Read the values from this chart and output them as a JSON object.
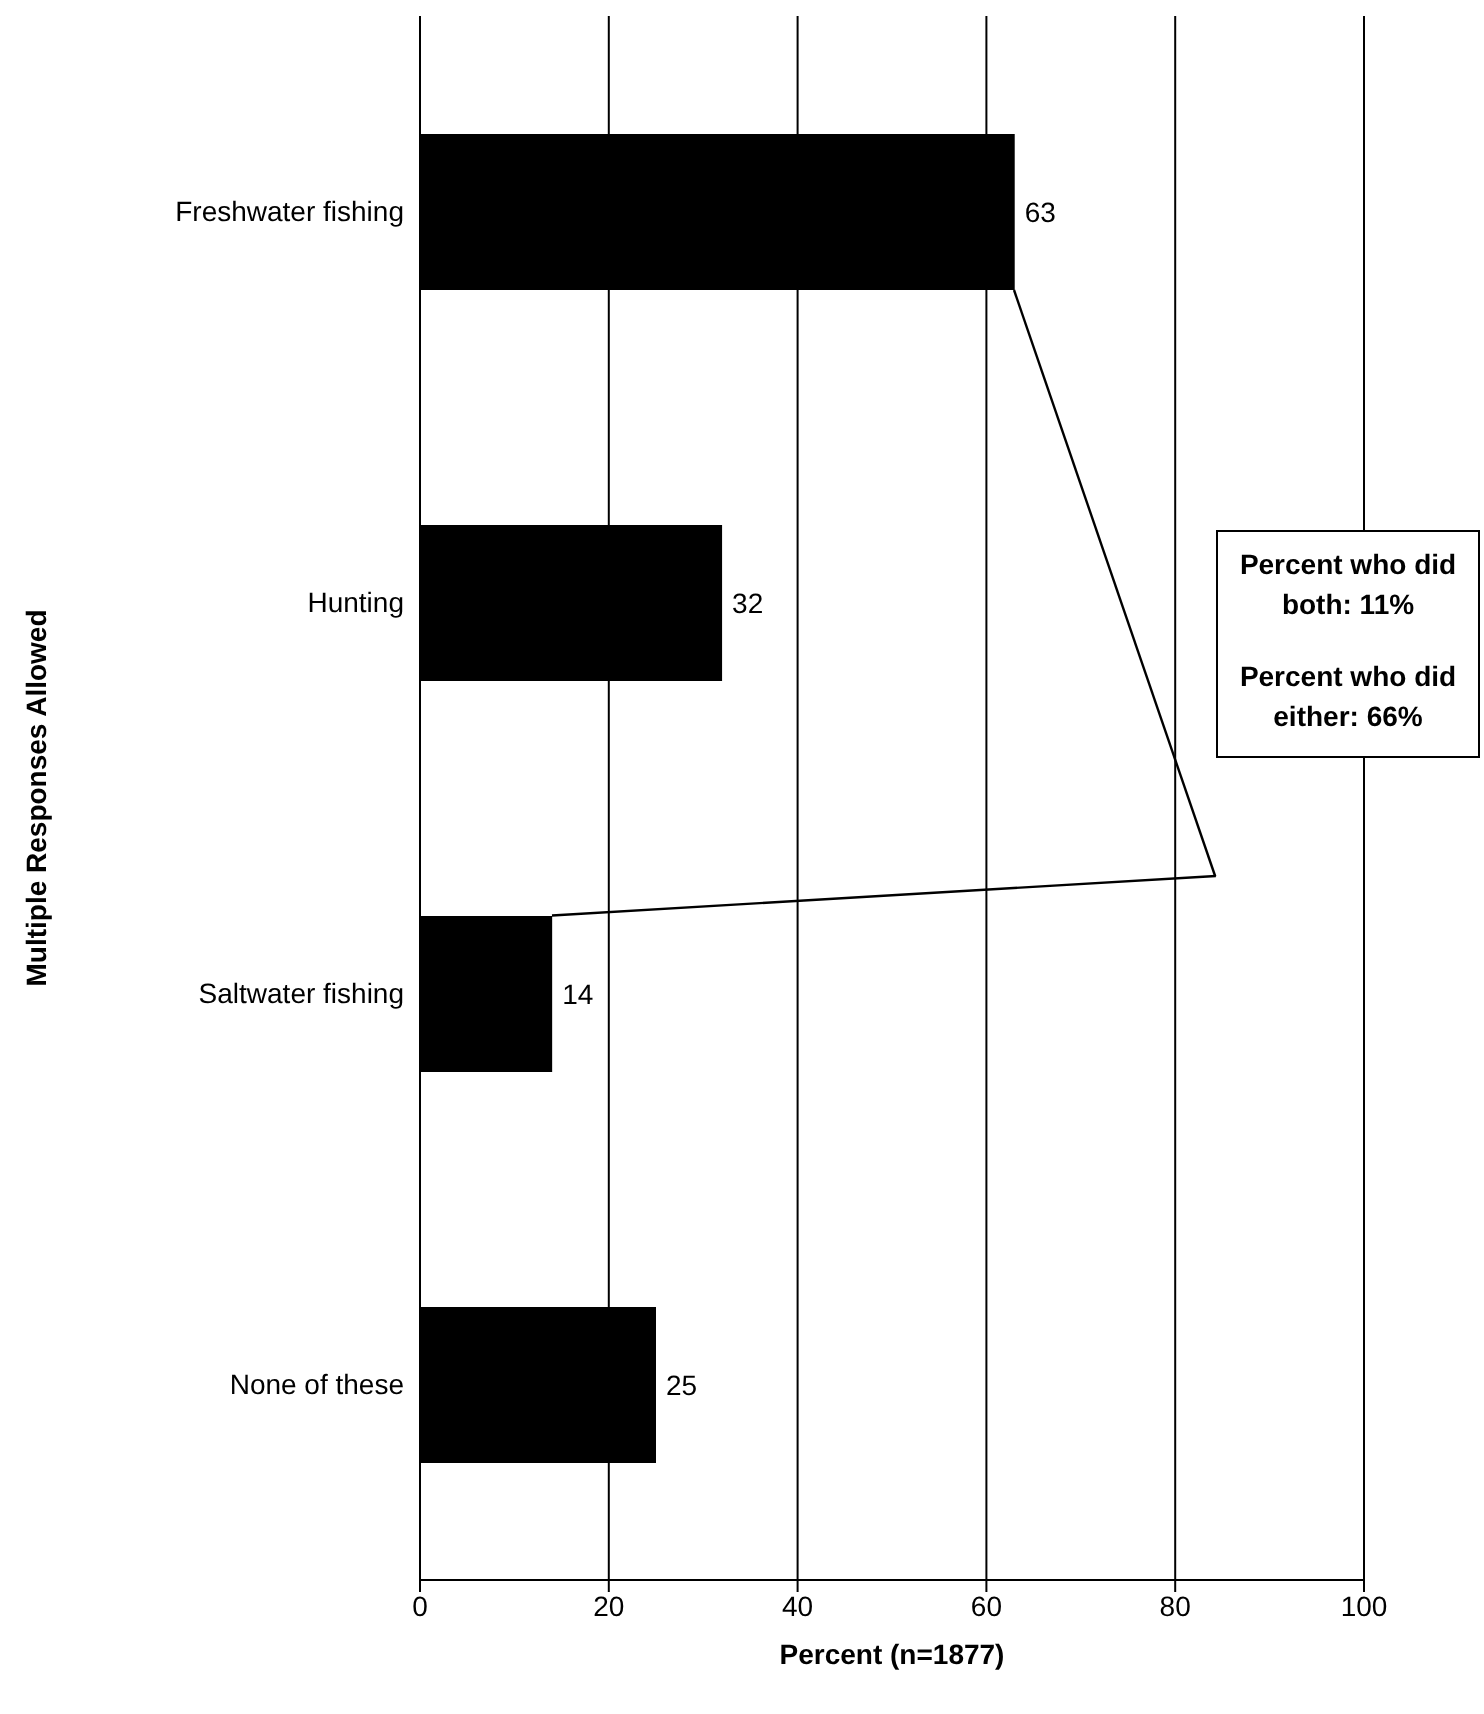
{
  "chart_data": {
    "type": "bar",
    "orientation": "horizontal",
    "categories": [
      "Freshwater fishing",
      "Hunting",
      "Saltwater fishing",
      "None of these"
    ],
    "values": [
      63,
      32,
      14,
      25
    ],
    "color": "#000000",
    "xlim": [
      0,
      100
    ],
    "xticks": [
      0,
      20,
      40,
      60,
      80,
      100
    ],
    "grid": "x",
    "data_labels": true,
    "xlabel": "Percent (n=1877)",
    "ylabel": "Multiple Responses Allowed",
    "annotations": [
      "Percent who did both: 11%",
      "Percent who did either: 66%"
    ]
  }
}
